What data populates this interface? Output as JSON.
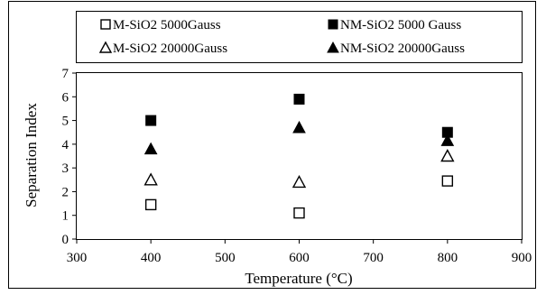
{
  "chart_data": {
    "type": "scatter",
    "xlabel": "Temperature (°C)",
    "ylabel": "Separation Index",
    "xlim": [
      300,
      900
    ],
    "ylim": [
      0,
      7
    ],
    "xticks": [
      300,
      400,
      500,
      600,
      700,
      800,
      900
    ],
    "yticks": [
      0,
      1,
      2,
      3,
      4,
      5,
      6,
      7
    ],
    "grid": false,
    "legend_placement": "top",
    "series": [
      {
        "name": "M-SiO2 5000Gauss",
        "marker": "square-open",
        "color": "#000000",
        "points": [
          {
            "x": 400,
            "y": 1.45
          },
          {
            "x": 600,
            "y": 1.1
          },
          {
            "x": 800,
            "y": 2.45
          }
        ]
      },
      {
        "name": "NM-SiO2 5000 Gauss",
        "marker": "square-filled",
        "color": "#000000",
        "points": [
          {
            "x": 400,
            "y": 5.0
          },
          {
            "x": 600,
            "y": 5.9
          },
          {
            "x": 800,
            "y": 4.5
          }
        ]
      },
      {
        "name": "M-SiO2 20000Gauss",
        "marker": "triangle-open",
        "color": "#000000",
        "points": [
          {
            "x": 400,
            "y": 2.5
          },
          {
            "x": 600,
            "y": 2.4
          },
          {
            "x": 800,
            "y": 3.5
          }
        ]
      },
      {
        "name": "NM-SiO2 20000Gauss",
        "marker": "triangle-filled",
        "color": "#000000",
        "points": [
          {
            "x": 400,
            "y": 3.8
          },
          {
            "x": 600,
            "y": 4.7
          },
          {
            "x": 800,
            "y": 4.15
          }
        ]
      }
    ]
  }
}
